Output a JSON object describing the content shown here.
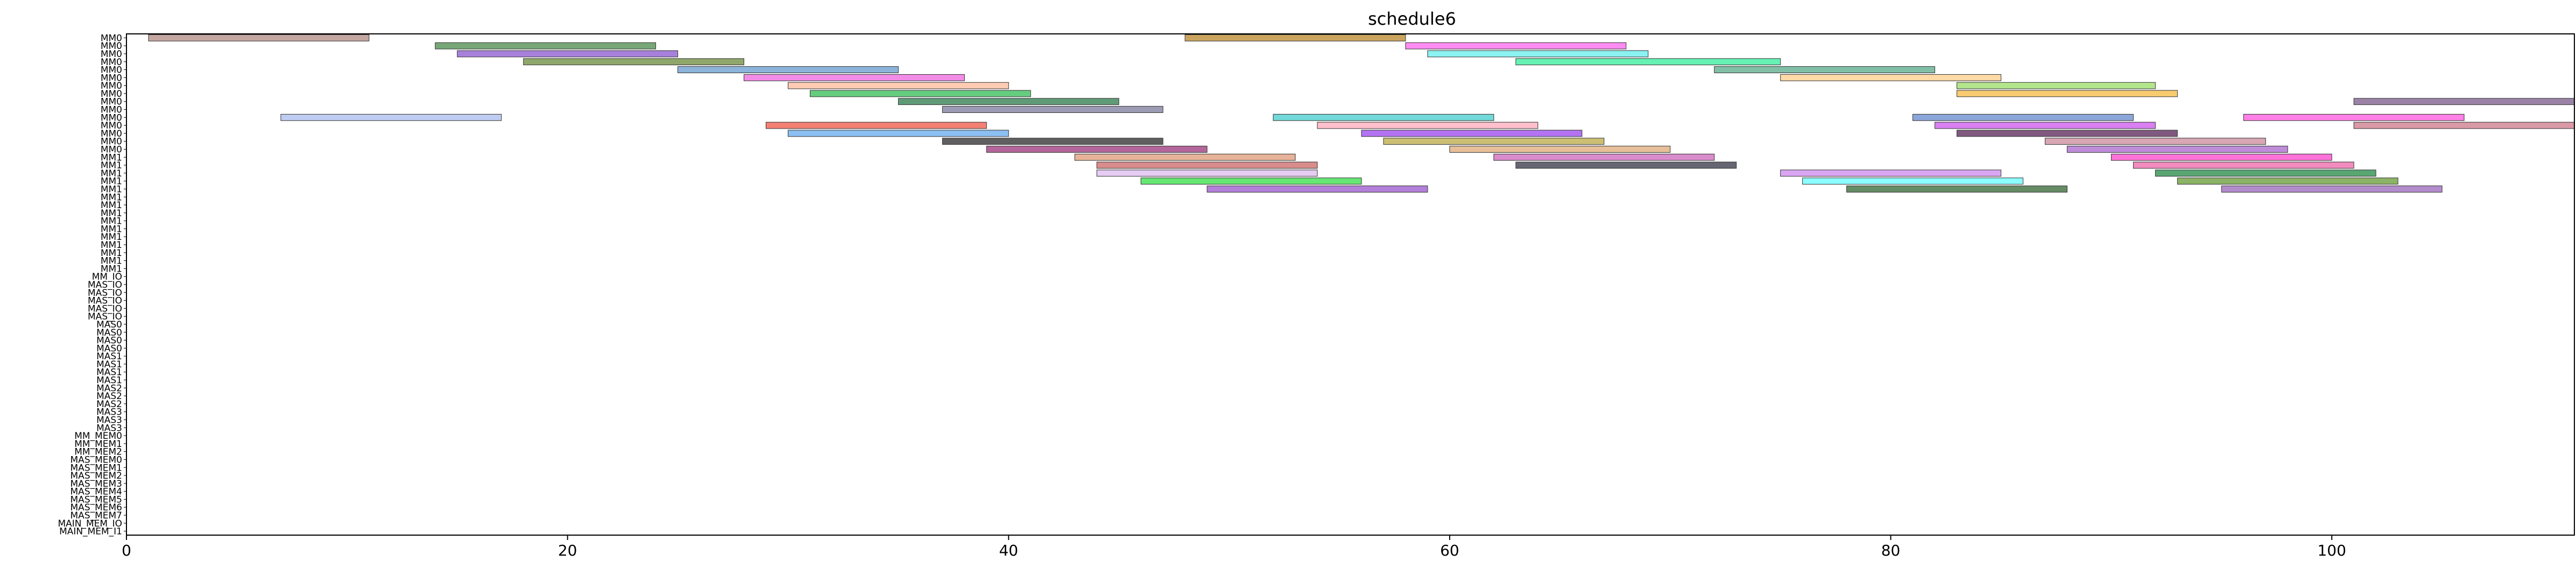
{
  "chart_data": {
    "type": "gantt",
    "title": "schedule6",
    "xlabel": "",
    "ylabel": "",
    "xlim": [
      0,
      111
    ],
    "x_ticks": [
      0,
      20,
      40,
      60,
      80,
      100
    ],
    "grid": false,
    "rows": [
      "MM0",
      "MM0",
      "MM0",
      "MM0",
      "MM0",
      "MM0",
      "MM0",
      "MM0",
      "MM0",
      "MM0",
      "MM0",
      "MM0",
      "MM0",
      "MM0",
      "MM0",
      "MM1",
      "MM1",
      "MM1",
      "MM1",
      "MM1",
      "MM1",
      "MM1",
      "MM1",
      "MM1",
      "MM1",
      "MM1",
      "MM1",
      "MM1",
      "MM1",
      "MM1",
      "MM_IO",
      "MAS_IO",
      "MAS_IO",
      "MAS_IO",
      "MAS_IO",
      "MAS_IO",
      "MAS0",
      "MAS0",
      "MAS0",
      "MAS0",
      "MAS1",
      "MAS1",
      "MAS1",
      "MAS1",
      "MAS2",
      "MAS2",
      "MAS2",
      "MAS3",
      "MAS3",
      "MAS3",
      "MM_MEM0",
      "MM_MEM1",
      "MM_MEM2",
      "MAS_MEM0",
      "MAS_MEM1",
      "MAS_MEM2",
      "MAS_MEM3",
      "MAS_MEM4",
      "MAS_MEM5",
      "MAS_MEM6",
      "MAS_MEM7",
      "MAIN_MEM_IO",
      "MAIN_MEM_I1"
    ],
    "tasks": [
      {
        "row": 0,
        "start": 1,
        "end": 11,
        "color": "#b08a80"
      },
      {
        "row": 0,
        "start": 48,
        "end": 58,
        "color": "#b8862a"
      },
      {
        "row": 1,
        "start": 14,
        "end": 24,
        "color": "#4a8a4a"
      },
      {
        "row": 1,
        "start": 58,
        "end": 68,
        "color": "#ff66ee"
      },
      {
        "row": 2,
        "start": 15,
        "end": 25,
        "color": "#8a55d0"
      },
      {
        "row": 2,
        "start": 59,
        "end": 69,
        "color": "#66eeee"
      },
      {
        "row": 3,
        "start": 18,
        "end": 28,
        "color": "#6a8a3a"
      },
      {
        "row": 3,
        "start": 63,
        "end": 75,
        "color": "#33ee99"
      },
      {
        "row": 4,
        "start": 25,
        "end": 35,
        "color": "#6699cc"
      },
      {
        "row": 4,
        "start": 72,
        "end": 82,
        "color": "#55aa88"
      },
      {
        "row": 5,
        "start": 28,
        "end": 38,
        "color": "#ee66dd"
      },
      {
        "row": 5,
        "start": 75,
        "end": 85,
        "color": "#ffcc88"
      },
      {
        "row": 6,
        "start": 30,
        "end": 40,
        "color": "#ffbb99"
      },
      {
        "row": 6,
        "start": 83,
        "end": 92,
        "color": "#99dd66"
      },
      {
        "row": 7,
        "start": 31,
        "end": 41,
        "color": "#33bb55"
      },
      {
        "row": 7,
        "start": 83,
        "end": 93,
        "color": "#f5b940"
      },
      {
        "row": 8,
        "start": 35,
        "end": 45,
        "color": "#2a7a4a"
      },
      {
        "row": 8,
        "start": 101,
        "end": 111,
        "color": "#7a5a8a"
      },
      {
        "row": 9,
        "start": 37,
        "end": 47,
        "color": "#7a7a99"
      },
      {
        "row": 10,
        "start": 7,
        "end": 17,
        "color": "#aabbee"
      },
      {
        "row": 10,
        "start": 52,
        "end": 62,
        "color": "#44cccc"
      },
      {
        "row": 10,
        "start": 81,
        "end": 91,
        "color": "#6688cc"
      },
      {
        "row": 10,
        "start": 96,
        "end": 106,
        "color": "#ff55dd"
      },
      {
        "row": 11,
        "start": 29,
        "end": 39,
        "color": "#ee5544"
      },
      {
        "row": 11,
        "start": 54,
        "end": 64,
        "color": "#ffaabb"
      },
      {
        "row": 11,
        "start": 82,
        "end": 92,
        "color": "#cc55ee"
      },
      {
        "row": 11,
        "start": 101,
        "end": 111,
        "color": "#cc7788"
      },
      {
        "row": 12,
        "start": 30,
        "end": 40,
        "color": "#66aaee"
      },
      {
        "row": 12,
        "start": 56,
        "end": 66,
        "color": "#9944ee"
      },
      {
        "row": 12,
        "start": 83,
        "end": 93,
        "color": "#552255"
      },
      {
        "row": 13,
        "start": 37,
        "end": 47,
        "color": "#2a2a2a"
      },
      {
        "row": 13,
        "start": 57,
        "end": 67,
        "color": "#bbaa44"
      },
      {
        "row": 13,
        "start": 87,
        "end": 97,
        "color": "#cc8899"
      },
      {
        "row": 14,
        "start": 39,
        "end": 49,
        "color": "#993377"
      },
      {
        "row": 14,
        "start": 60,
        "end": 70,
        "color": "#ddaa77"
      },
      {
        "row": 14,
        "start": 88,
        "end": 98,
        "color": "#aa66cc"
      },
      {
        "row": 15,
        "start": 43,
        "end": 53,
        "color": "#dd9977"
      },
      {
        "row": 15,
        "start": 62,
        "end": 72,
        "color": "#cc66bb"
      },
      {
        "row": 15,
        "start": 90,
        "end": 100,
        "color": "#ff44cc"
      },
      {
        "row": 16,
        "start": 44,
        "end": 54,
        "color": "#cc6666"
      },
      {
        "row": 16,
        "start": 63,
        "end": 73,
        "color": "#333344"
      },
      {
        "row": 16,
        "start": 91,
        "end": 101,
        "color": "#ee66aa"
      },
      {
        "row": 17,
        "start": 44,
        "end": 54,
        "color": "#ddbbee"
      },
      {
        "row": 17,
        "start": 75,
        "end": 85,
        "color": "#cc88ee"
      },
      {
        "row": 17,
        "start": 92,
        "end": 102,
        "color": "#228844"
      },
      {
        "row": 18,
        "start": 46,
        "end": 56,
        "color": "#33dd44"
      },
      {
        "row": 18,
        "start": 76,
        "end": 86,
        "color": "#66ffff"
      },
      {
        "row": 18,
        "start": 93,
        "end": 103,
        "color": "#669933"
      },
      {
        "row": 19,
        "start": 49,
        "end": 59,
        "color": "#9955cc"
      },
      {
        "row": 19,
        "start": 78,
        "end": 88,
        "color": "#336633"
      },
      {
        "row": 19,
        "start": 95,
        "end": 105,
        "color": "#9966bb"
      }
    ]
  }
}
